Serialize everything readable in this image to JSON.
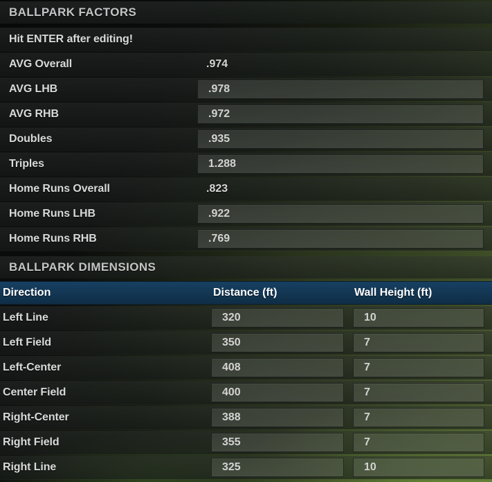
{
  "factors": {
    "title": "BALLPARK FACTORS",
    "notice": "Hit ENTER after editing!",
    "rows": [
      {
        "label": "AVG Overall",
        "value": ".974",
        "editable": false
      },
      {
        "label": "AVG LHB",
        "value": ".978",
        "editable": true
      },
      {
        "label": "AVG RHB",
        "value": ".972",
        "editable": true
      },
      {
        "label": "Doubles",
        "value": ".935",
        "editable": true
      },
      {
        "label": "Triples",
        "value": "1.288",
        "editable": true
      },
      {
        "label": "Home Runs Overall",
        "value": ".823",
        "editable": false
      },
      {
        "label": "Home Runs LHB",
        "value": ".922",
        "editable": true
      },
      {
        "label": "Home Runs RHB",
        "value": ".769",
        "editable": true
      }
    ]
  },
  "dimensions": {
    "title": "BALLPARK DIMENSIONS",
    "columns": [
      "Direction",
      "Distance (ft)",
      "Wall Height (ft)"
    ],
    "rows": [
      {
        "direction": "Left Line",
        "distance": "320",
        "wall_height": "10"
      },
      {
        "direction": "Left Field",
        "distance": "350",
        "wall_height": "7"
      },
      {
        "direction": "Left-Center",
        "distance": "408",
        "wall_height": "7"
      },
      {
        "direction": "Center Field",
        "distance": "400",
        "wall_height": "7"
      },
      {
        "direction": "Right-Center",
        "distance": "388",
        "wall_height": "7"
      },
      {
        "direction": "Right Field",
        "distance": "355",
        "wall_height": "7"
      },
      {
        "direction": "Right Line",
        "distance": "325",
        "wall_height": "10"
      }
    ]
  },
  "colors": {
    "table_header_blue_top": "#174062",
    "table_header_blue_bottom": "#0f2d45",
    "section_header_text": "#c3c4c5",
    "row_label_text": "#d8d9da",
    "field_text": "#d2d3d2",
    "background_dark": "#0b0d0c",
    "background_green": "#556832"
  }
}
